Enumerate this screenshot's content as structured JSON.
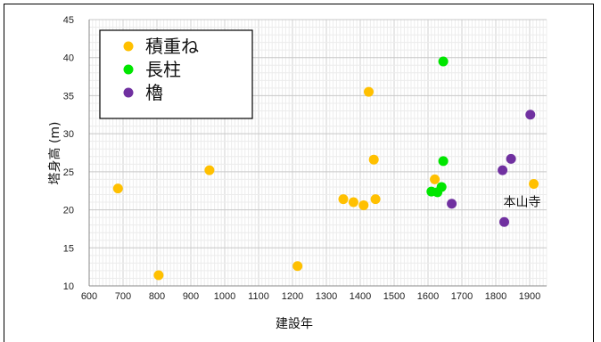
{
  "chart_data": {
    "type": "scatter",
    "xlabel": "建設年",
    "ylabel": "塔身高 (m)",
    "xlim": [
      600,
      1950
    ],
    "ylim": [
      10,
      45
    ],
    "xticks": [
      600,
      700,
      800,
      900,
      1000,
      1100,
      1200,
      1300,
      1400,
      1500,
      1600,
      1700,
      1800,
      1900
    ],
    "yticks": [
      10,
      15,
      20,
      25,
      30,
      35,
      40,
      45
    ],
    "grid": true,
    "legend": "top-left",
    "series": [
      {
        "name": "積重ね",
        "color": "#FFC000",
        "points": [
          {
            "x": 685,
            "y": 22.8
          },
          {
            "x": 805,
            "y": 11.4
          },
          {
            "x": 955,
            "y": 25.2
          },
          {
            "x": 1215,
            "y": 12.6
          },
          {
            "x": 1350,
            "y": 21.4
          },
          {
            "x": 1380,
            "y": 21.0
          },
          {
            "x": 1410,
            "y": 20.6
          },
          {
            "x": 1425,
            "y": 35.5
          },
          {
            "x": 1440,
            "y": 26.6
          },
          {
            "x": 1445,
            "y": 21.4
          },
          {
            "x": 1620,
            "y": 24.0
          },
          {
            "x": 1912,
            "y": 23.4
          }
        ]
      },
      {
        "name": "長柱",
        "color": "#00E600",
        "points": [
          {
            "x": 1610,
            "y": 22.4
          },
          {
            "x": 1628,
            "y": 22.3
          },
          {
            "x": 1640,
            "y": 23.0
          },
          {
            "x": 1645,
            "y": 26.4
          },
          {
            "x": 1645,
            "y": 39.5
          }
        ]
      },
      {
        "name": "櫓",
        "color": "#7030A0",
        "points": [
          {
            "x": 1670,
            "y": 20.8
          },
          {
            "x": 1820,
            "y": 25.2
          },
          {
            "x": 1825,
            "y": 18.4
          },
          {
            "x": 1845,
            "y": 26.7
          },
          {
            "x": 1902,
            "y": 32.5
          }
        ]
      }
    ],
    "annotations": [
      {
        "text": "本山寺",
        "x": 1912,
        "y": 23.4
      }
    ]
  }
}
